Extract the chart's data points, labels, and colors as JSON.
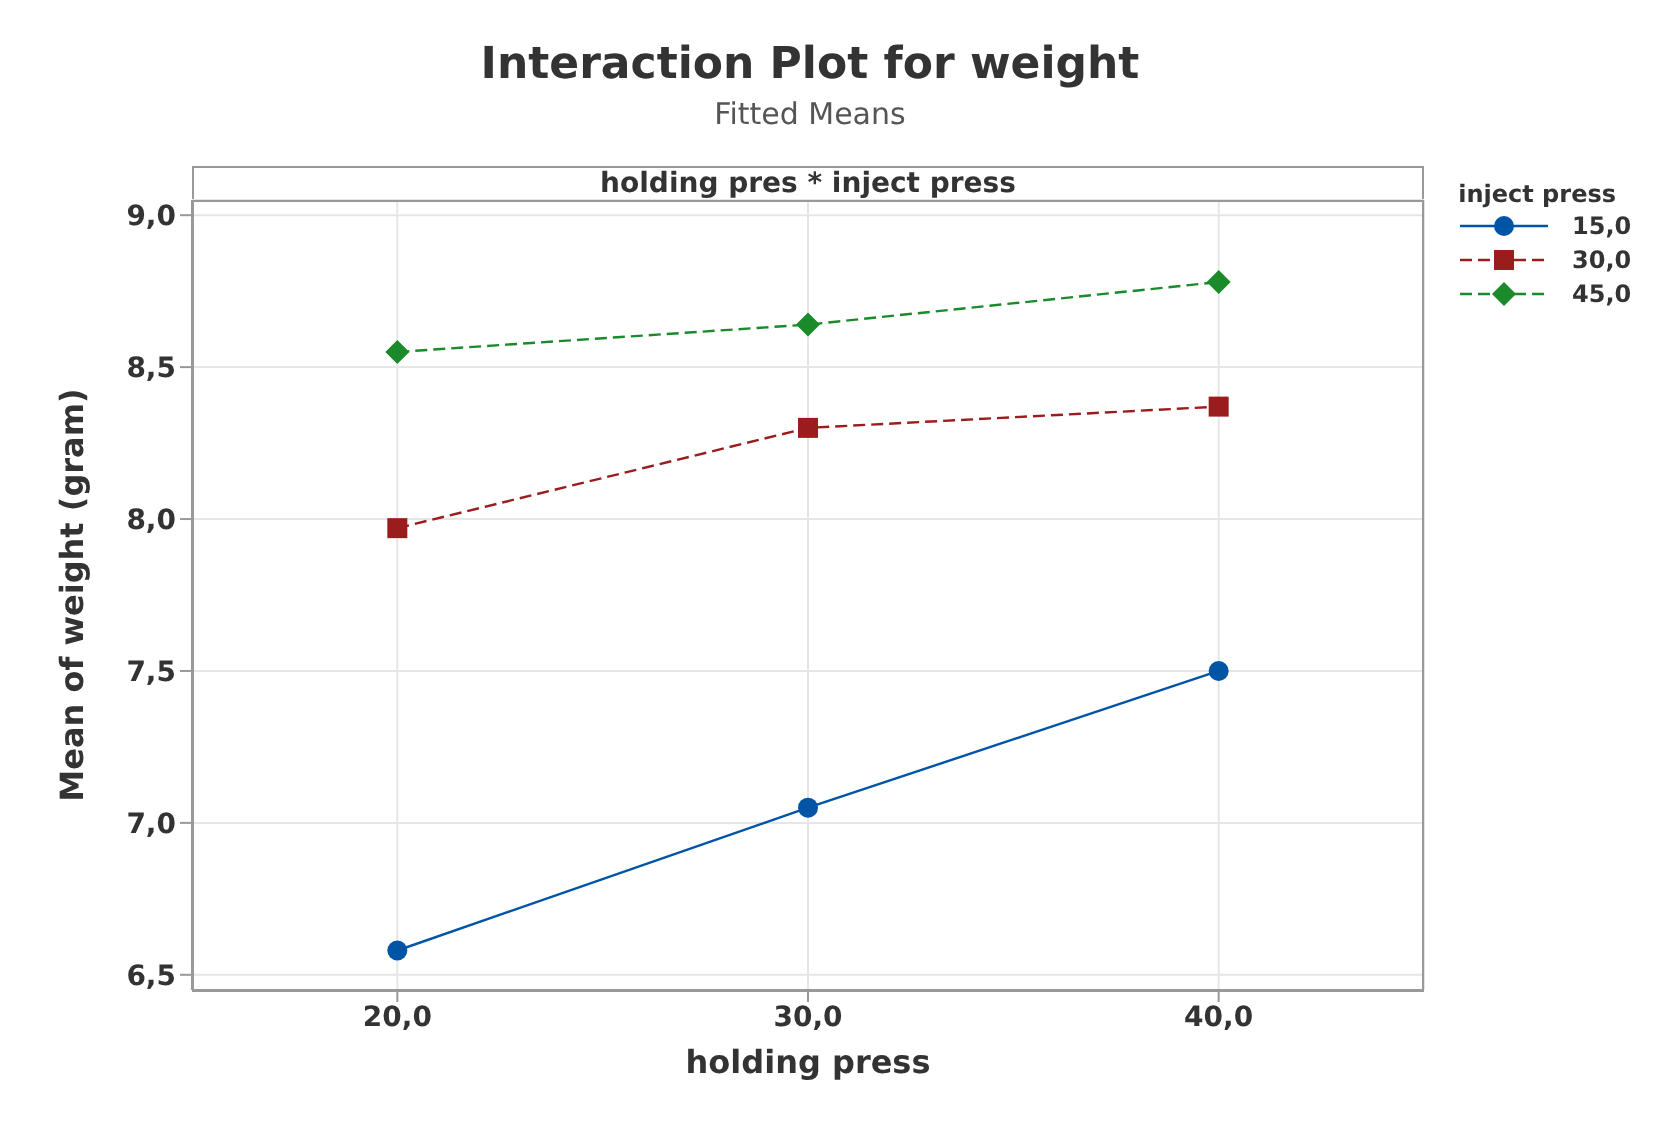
{
  "chart_data": {
    "type": "line",
    "title": "Interaction Plot for weight",
    "subtitle": "Fitted Means",
    "xlabel": "holding press",
    "ylabel": "Mean of weight (gram)",
    "legend_title": "inject press",
    "annotations": [
      "holding pres * inject press"
    ],
    "x": [
      20,
      30,
      40
    ],
    "series": [
      {
        "name": "15,0",
        "color": "#0054a6",
        "values": [
          6.58,
          7.05,
          7.5
        ],
        "marker": "circle",
        "line_style": "solid"
      },
      {
        "name": "30,0",
        "color": "#9b1c1c",
        "values": [
          7.97,
          8.3,
          8.37
        ],
        "marker": "square",
        "line_style": "dashed"
      },
      {
        "name": "45,0",
        "color": "#1b8a2a",
        "values": [
          8.55,
          8.64,
          8.78
        ],
        "marker": "diamond",
        "line_style": "dashed"
      }
    ],
    "xlim": [
      15,
      45
    ],
    "xticks": [
      {
        "value": 20,
        "label": "20,0"
      },
      {
        "value": 30,
        "label": "30,0"
      },
      {
        "value": 40,
        "label": "40,0"
      }
    ],
    "ylim": [
      6.45,
      9.05
    ],
    "yticks": [
      {
        "value": 6.5,
        "label": "6,5"
      },
      {
        "value": 7,
        "label": "7,0"
      },
      {
        "value": 7.5,
        "label": "7,5"
      },
      {
        "value": 8,
        "label": "8,0"
      },
      {
        "value": 8.5,
        "label": "8,5"
      },
      {
        "value": 9,
        "label": "9,0"
      }
    ],
    "grid": true,
    "legend": "right"
  }
}
